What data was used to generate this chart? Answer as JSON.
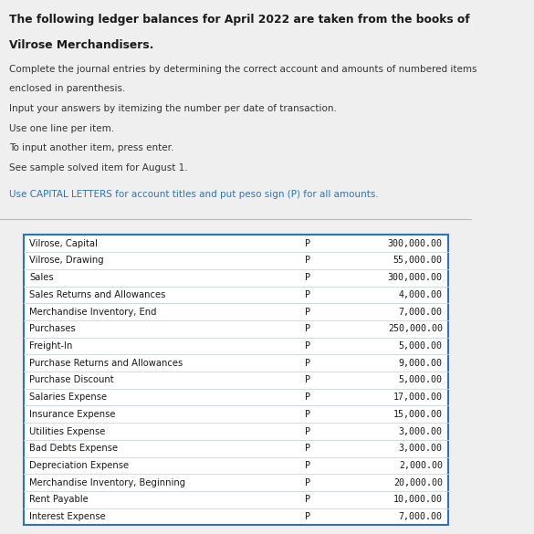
{
  "title_line1": "The following ledger balances for April 2022 are taken from the books of",
  "title_line2": "Vilrose Merchandisers.",
  "instructions": [
    "Complete the journal entries by determining the correct account and amounts of numbered items",
    "enclosed in parenthesis.",
    "Input your answers by itemizing the number per date of transaction.",
    "Use one line per item.",
    "To input another item, press enter.",
    "See sample solved item for August 1."
  ],
  "capital_note": "Use CAPITAL LETTERS for account titles and put peso sign (P) for all amounts.",
  "title_color": "#1a1a1a",
  "title2_color": "#1a1a1a",
  "instr_color": "#333333",
  "blue_color": "#2e74b5",
  "table_rows": [
    {
      "account": "Vilrose, Capital",
      "peso": "P",
      "amount": "300,000.00"
    },
    {
      "account": "Vilrose, Drawing",
      "peso": "P",
      "amount": "55,000.00"
    },
    {
      "account": "Sales",
      "peso": "P",
      "amount": "300,000.00"
    },
    {
      "account": "Sales Returns and Allowances",
      "peso": "P",
      "amount": "4,000.00"
    },
    {
      "account": "Merchandise Inventory, End",
      "peso": "P",
      "amount": "7,000.00"
    },
    {
      "account": "Purchases",
      "peso": "P",
      "amount": "250,000.00"
    },
    {
      "account": "Freight-In",
      "peso": "P",
      "amount": "5,000.00"
    },
    {
      "account": "Purchase Returns and Allowances",
      "peso": "P",
      "amount": "9,000.00"
    },
    {
      "account": "Purchase Discount",
      "peso": "P",
      "amount": "5,000.00"
    },
    {
      "account": "Salaries Expense",
      "peso": "P",
      "amount": "17,000.00"
    },
    {
      "account": "Insurance Expense",
      "peso": "P",
      "amount": "15,000.00"
    },
    {
      "account": "Utilities Expense",
      "peso": "P",
      "amount": "3,000.00"
    },
    {
      "account": "Bad Debts Expense",
      "peso": "P",
      "amount": "3,000.00"
    },
    {
      "account": "Depreciation Expense",
      "peso": "P",
      "amount": "2,000.00"
    },
    {
      "account": "Merchandise Inventory, Beginning",
      "peso": "P",
      "amount": "20,000.00"
    },
    {
      "account": "Rent Payable",
      "peso": "P",
      "amount": "10,000.00"
    },
    {
      "account": "Interest Expense",
      "peso": "P",
      "amount": "7,000.00"
    }
  ],
  "bg_color": "#efefef",
  "table_bg": "#ffffff",
  "table_border_color": "#2e74b5",
  "table_line_color": "#c8d8e8"
}
